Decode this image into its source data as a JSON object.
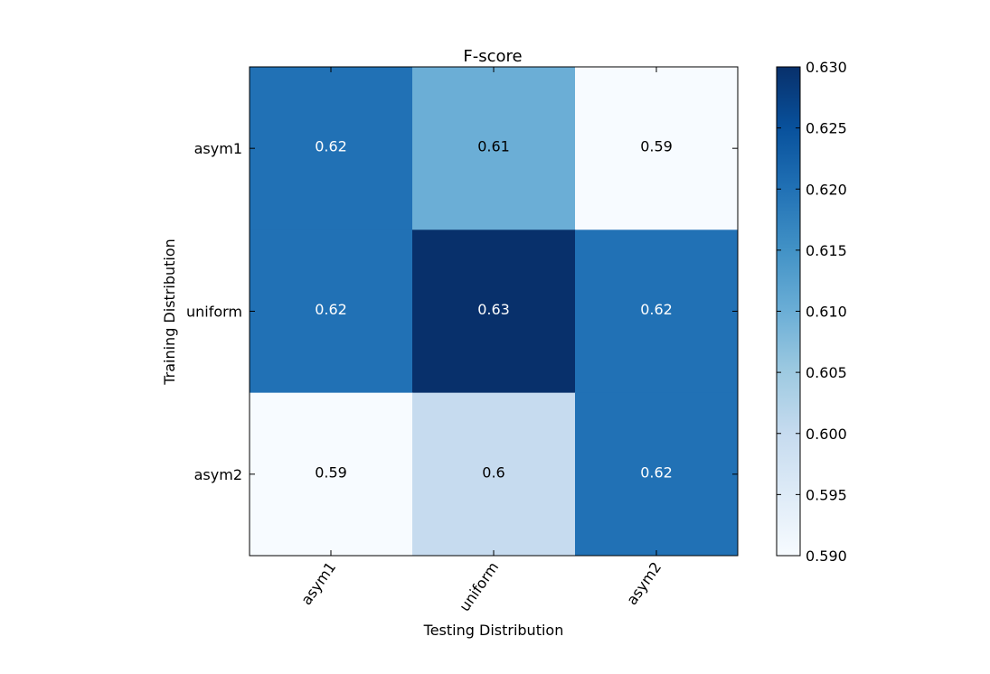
{
  "chart_data": {
    "type": "heatmap",
    "title": "F-score",
    "xlabel": "Testing Distribution",
    "ylabel": "Training Distribution",
    "x_categories": [
      "asym1",
      "uniform",
      "asym2"
    ],
    "y_categories": [
      "asym1",
      "uniform",
      "asym2"
    ],
    "values": [
      [
        0.62,
        0.61,
        0.59
      ],
      [
        0.62,
        0.63,
        0.62
      ],
      [
        0.59,
        0.6,
        0.62
      ]
    ],
    "cell_labels": [
      [
        "0.62",
        "0.61",
        "0.59"
      ],
      [
        "0.62",
        "0.63",
        "0.62"
      ],
      [
        "0.59",
        "0.6",
        "0.62"
      ]
    ],
    "colormap": "Blues",
    "color_range": [
      0.59,
      0.63
    ],
    "colorbar": {
      "ticks": [
        0.59,
        0.595,
        0.6,
        0.605,
        0.61,
        0.615,
        0.62,
        0.625,
        0.63
      ],
      "tick_labels": [
        "0.590",
        "0.595",
        "0.600",
        "0.605",
        "0.610",
        "0.615",
        "0.620",
        "0.625",
        "0.630"
      ]
    }
  }
}
